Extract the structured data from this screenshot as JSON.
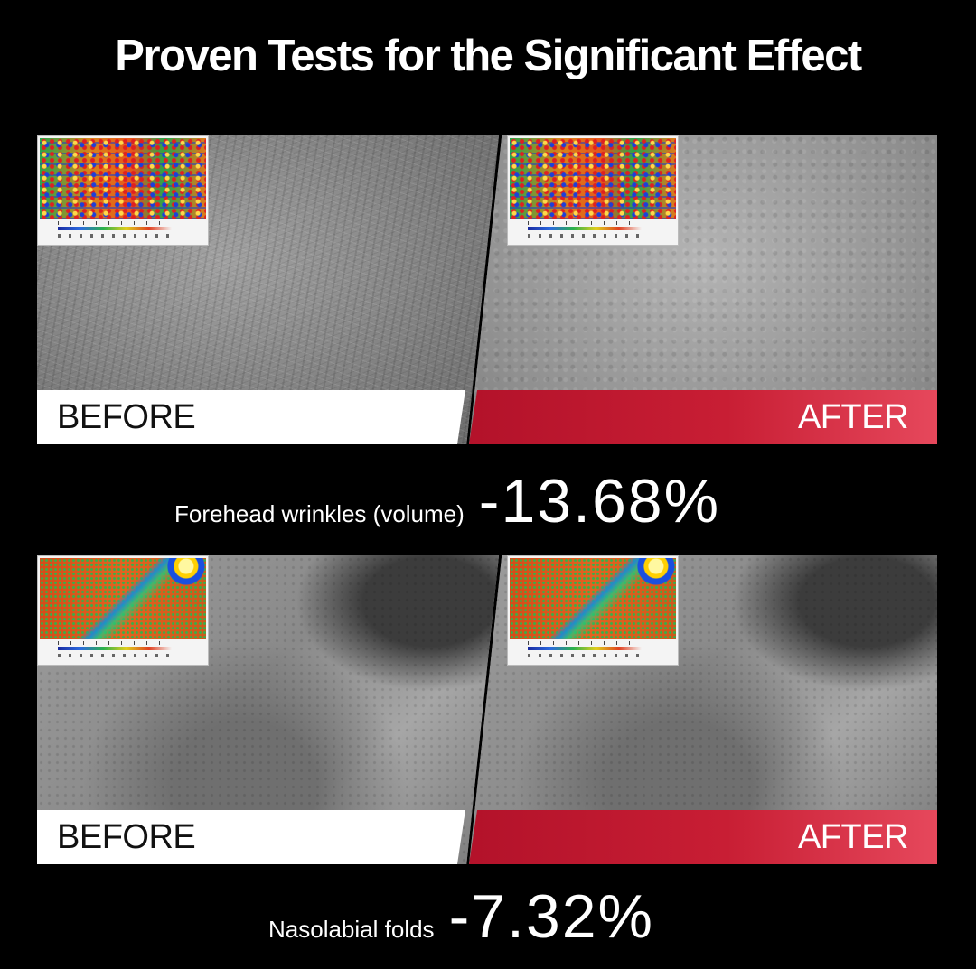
{
  "title": "Proven Tests for the Significant Effect",
  "sections": [
    {
      "before_label": "BEFORE",
      "after_label": "AFTER",
      "metric_label": "Forehead wrinkles (volume)",
      "metric_value": "-13.68%"
    },
    {
      "before_label": "BEFORE",
      "after_label": "AFTER",
      "metric_label": "Nasolabial folds",
      "metric_value": "-7.32%"
    }
  ],
  "colors": {
    "background": "#000000",
    "after_label_bg": "#c81e34",
    "before_label_bg": "#ffffff"
  }
}
